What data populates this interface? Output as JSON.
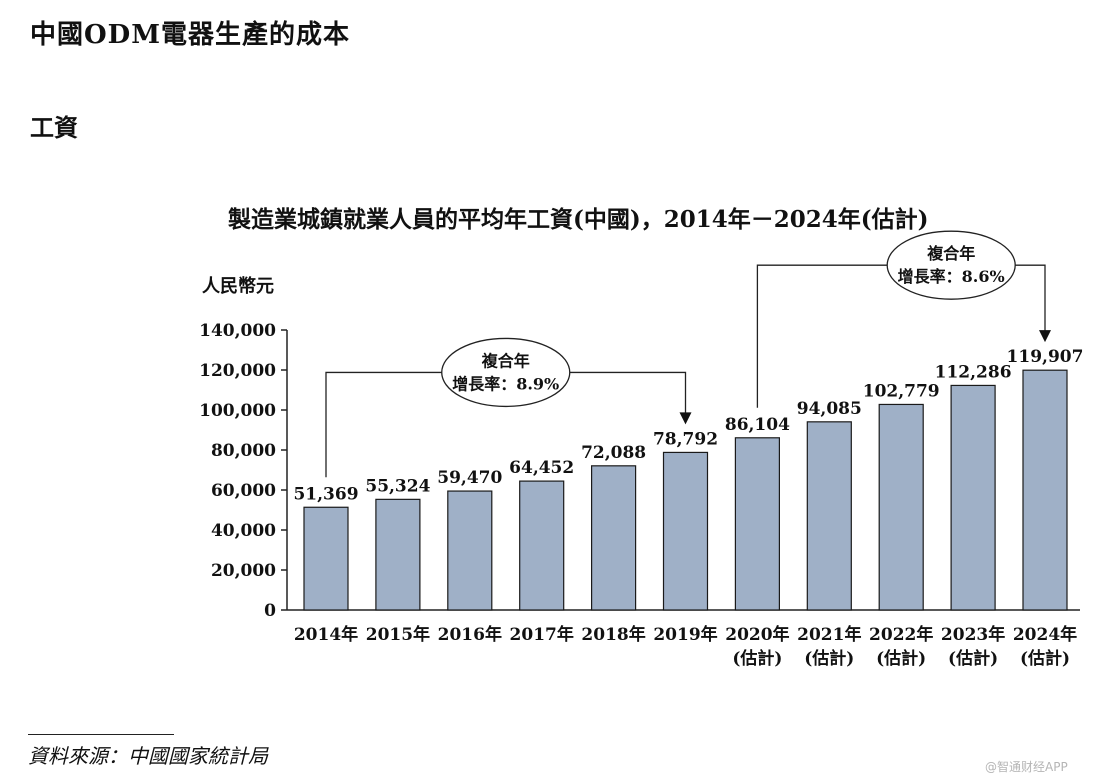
{
  "page": {
    "heading": "中國ODM電器生產的成本",
    "subheading": "工資",
    "source": "資料來源：中國國家統計局",
    "watermark": "@智通财经APP"
  },
  "chart_data": {
    "type": "bar",
    "title": "製造業城鎮就業人員的平均年工資(中國)，2014年－2024年(估計)",
    "ylabel": "人民幣元",
    "xlabel": "",
    "ylim": [
      0,
      140000
    ],
    "yticks": [
      0,
      20000,
      40000,
      60000,
      80000,
      100000,
      120000,
      140000
    ],
    "ytick_labels": [
      "0",
      "20,000",
      "40,000",
      "60,000",
      "80,000",
      "100,000",
      "120,000",
      "140,000"
    ],
    "categories": [
      "2014年",
      "2015年",
      "2016年",
      "2017年",
      "2018年",
      "2019年",
      "2020年",
      "2021年",
      "2022年",
      "2023年",
      "2024年"
    ],
    "category_sublabels": [
      "",
      "",
      "",
      "",
      "",
      "",
      "(估計)",
      "(估計)",
      "(估計)",
      "(估計)",
      "(估計)"
    ],
    "values": [
      51369,
      55324,
      59470,
      64452,
      72088,
      78792,
      86104,
      94085,
      102779,
      112286,
      119907
    ],
    "value_labels": [
      "51,369",
      "55,324",
      "59,470",
      "64,452",
      "72,088",
      "78,792",
      "86,104",
      "94,085",
      "102,779",
      "112,286",
      "119,907"
    ],
    "bar_color": "#9fb0c7",
    "bar_stroke": "#1a1a1a",
    "grid": false,
    "annotations": [
      {
        "from_index": 0,
        "to_index": 5,
        "line1": "複合年",
        "line2": "增長率：8.9%"
      },
      {
        "from_index": 6,
        "to_index": 10,
        "line1": "複合年",
        "line2": "增長率：8.6%"
      }
    ]
  }
}
